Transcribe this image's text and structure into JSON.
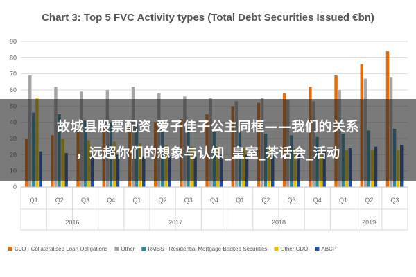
{
  "chart_data": {
    "type": "bar",
    "title": "Chart 3: Top 5 FVC Activity types (Total Debt Securities Issued €bn)",
    "xlabel": "",
    "ylabel": "",
    "ylim": [
      0,
      90
    ],
    "yticks": [
      "0",
      "10",
      "20",
      "30",
      "40",
      "50",
      "60",
      "70",
      "80",
      "90"
    ],
    "grid": true,
    "legend_position": "bottom",
    "categories": [
      "Q1",
      "Q2",
      "Q3",
      "Q4",
      "Q1",
      "Q2",
      "Q3",
      "Q4",
      "Q1",
      "Q2",
      "Q3",
      "Q4",
      "Q1",
      "Q2",
      "Q3"
    ],
    "year_groups": [
      {
        "label": "2016",
        "start": 0,
        "count": 4
      },
      {
        "label": "2017",
        "start": 4,
        "count": 4
      },
      {
        "label": "2018",
        "start": 8,
        "count": 4
      },
      {
        "label": "2019",
        "start": 12,
        "count": 3
      }
    ],
    "series": [
      {
        "name": "CLO - Collateralised Loan Obligations",
        "color": "#e46c0a",
        "values": [
          30,
          32,
          35,
          37,
          38,
          40,
          42,
          45,
          50,
          52,
          58,
          62,
          69,
          76,
          84
        ]
      },
      {
        "name": "Other",
        "color": "#a5a5a5",
        "values": [
          69,
          62,
          59,
          60,
          62,
          58,
          56,
          55,
          53,
          55,
          54,
          53,
          60,
          67,
          68
        ]
      },
      {
        "name": "RMBS - Residential Mortgage Backed Securities",
        "color": "#31859c",
        "values": [
          46,
          45,
          41,
          40,
          39,
          38,
          36,
          35,
          34,
          33,
          32,
          31,
          33,
          35,
          36
        ]
      },
      {
        "name": "Other CDO",
        "color": "#e8c000",
        "values": [
          55,
          30,
          29,
          28,
          27,
          26,
          25,
          25,
          24,
          24,
          24,
          23,
          23,
          23,
          23
        ]
      },
      {
        "name": "ABCP",
        "color": "#1f4e9c",
        "values": [
          22,
          21,
          20,
          20,
          19,
          19,
          19,
          20,
          20,
          21,
          22,
          22,
          24,
          25,
          26
        ]
      }
    ]
  },
  "overlay": {
    "line1": "故城县股票配资 爱子佳子公主同框——我们的关系",
    "line2": "，远超你们的想象与认知_皇室_茶话会_活动"
  }
}
